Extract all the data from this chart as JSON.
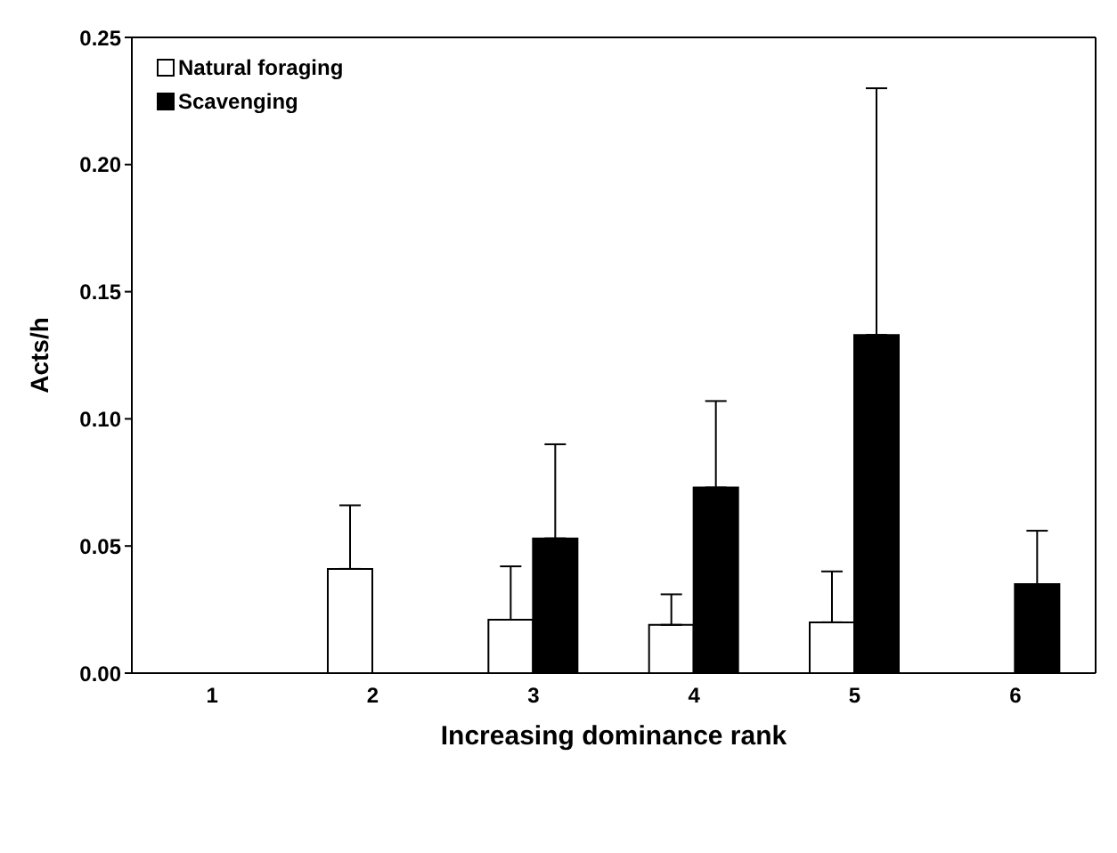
{
  "chart_data": {
    "type": "bar",
    "xlabel": "Increasing dominance rank",
    "ylabel": "Acts/h",
    "categories": [
      "1",
      "2",
      "3",
      "4",
      "5",
      "6"
    ],
    "series": [
      {
        "name": "Natural foraging",
        "color": "#ffffff",
        "values": [
          0,
          0.041,
          0.021,
          0.019,
          0.02,
          0
        ],
        "errors": [
          null,
          [
            0.041,
            0.066
          ],
          [
            0.021,
            0.042
          ],
          [
            0.019,
            0.031
          ],
          [
            0.02,
            0.04
          ],
          null
        ]
      },
      {
        "name": "Scavenging",
        "color": "#000000",
        "values": [
          0,
          0,
          0.053,
          0.073,
          0.133,
          0.035
        ],
        "errors": [
          null,
          null,
          [
            0.053,
            0.09
          ],
          [
            0.073,
            0.107
          ],
          [
            0.133,
            0.23
          ],
          [
            0.035,
            0.056
          ]
        ]
      }
    ],
    "ylim": [
      0,
      0.25
    ],
    "yticks": [
      {
        "value": 0,
        "label": "0.00"
      },
      0.05,
      {
        "value": 0.1,
        "label": "0.10"
      },
      0.15,
      {
        "value": 0.2,
        "label": "0.20"
      },
      0.25
    ],
    "grid": false,
    "legend": "top left"
  }
}
